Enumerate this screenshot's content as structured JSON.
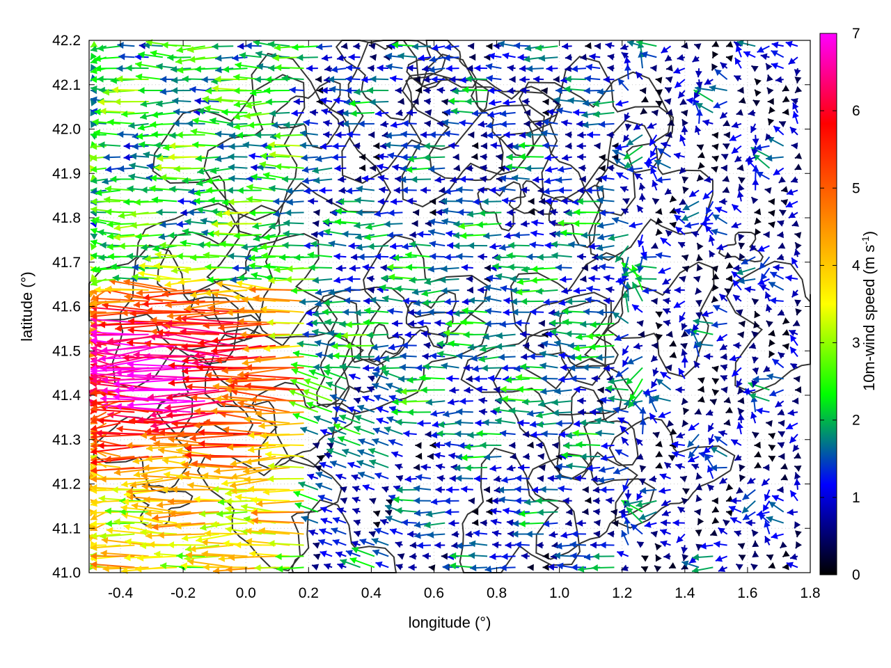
{
  "chart_data": {
    "type": "vector-field",
    "xlabel": "longitude (°)",
    "ylabel": "latitude (°)",
    "xlim": [
      -0.5,
      1.8
    ],
    "ylim": [
      41.0,
      42.2
    ],
    "xticks": [
      -0.4,
      -0.2,
      0.0,
      0.2,
      0.4,
      0.6,
      0.8,
      1.0,
      1.2,
      1.4,
      1.6,
      1.8
    ],
    "xtick_labels": [
      "-0.4",
      "-0.2",
      "0.0",
      "0.2",
      "0.4",
      "0.6",
      "0.8",
      "1.0",
      "1.2",
      "1.4",
      "1.6",
      "1.8"
    ],
    "yticks": [
      41.0,
      41.1,
      41.2,
      41.3,
      41.4,
      41.5,
      41.6,
      41.7,
      41.8,
      41.9,
      42.0,
      42.1,
      42.2
    ],
    "ytick_labels": [
      "41.0",
      "41.1",
      "41.2",
      "41.3",
      "41.4",
      "41.5",
      "41.6",
      "41.7",
      "41.8",
      "41.9",
      "42.0",
      "42.1",
      "42.2"
    ],
    "grid": true,
    "colorbar": {
      "label_prefix": "10m-wind speed (m s",
      "label_exponent": "-1",
      "label_suffix": ")",
      "range": [
        0,
        7
      ],
      "ticks": [
        0,
        1,
        2,
        3,
        4,
        5,
        6,
        7
      ],
      "tick_labels": [
        "0",
        "1",
        "2",
        "3",
        "4",
        "5",
        "6",
        "7"
      ],
      "palette": [
        "#000000",
        "#0000ff",
        "#00ff00",
        "#ffff00",
        "#ff8000",
        "#ff0000",
        "#ff00ff"
      ]
    },
    "field": {
      "description": "Wind vectors: predominantly easterly flow (arrows pointing west), strongest (4-7 m/s) in the west/southwest (lon -0.5 to 0.4, lat 41.0-41.7), weak variable winds (<2 m/s) in the east",
      "grid_dx_deg": 0.045,
      "grid_dy_deg": 0.025,
      "strong_zone_center": [
        -0.2,
        41.45
      ],
      "strong_zone_peak_speed": 6.8,
      "regional_speeds": [
        {
          "region": "west lon -0.5..0.2, lat 41.2..41.6",
          "speed": 6.0
        },
        {
          "region": "west lon -0.5..0.2, lat 41.7..42.2",
          "speed": 3.5
        },
        {
          "region": "center lon 0.4..1.3, lat 41.3..41.8",
          "speed": 2.5
        },
        {
          "region": "east lon 1.3..1.8",
          "speed": 1.2
        }
      ]
    },
    "contours": "Topography isolines (dark gray) drawn over the field"
  }
}
